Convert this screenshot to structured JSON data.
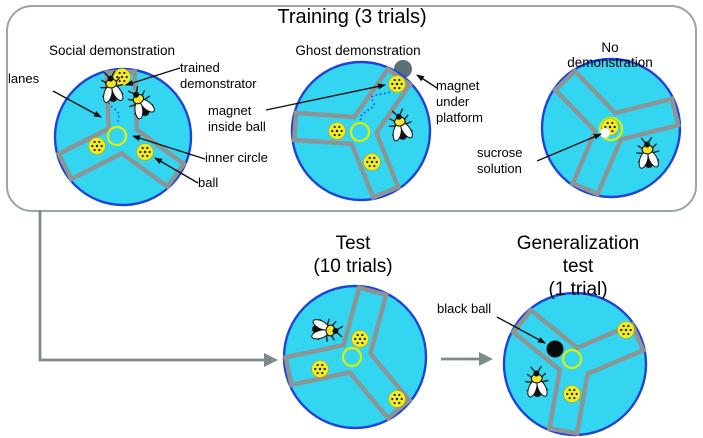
{
  "training": {
    "title": "Training (3 trials)",
    "panels": {
      "social": {
        "label": "Social demonstration"
      },
      "ghost": {
        "label": "Ghost demonstration"
      },
      "none": {
        "label": "No demonstration"
      }
    },
    "annotations": {
      "lanes": "lanes",
      "trained_demonstrator": "trained\ndemonstrator",
      "magnet_inside_ball": "magnet\ninside ball",
      "magnet_under_platform": "magnet\nunder\nplatform",
      "inner_circle": "inner circle",
      "ball": "ball",
      "sucrose_solution": "sucrose\nsolution"
    }
  },
  "test": {
    "title": "Test\n(10 trials)"
  },
  "generalization": {
    "title": "Generalization test\n(1 trial)",
    "annotations": {
      "black_ball": "black ball"
    }
  },
  "colors": {
    "arena_fill": "#33d5f1",
    "arena_stroke": "#2042d8",
    "lane_stroke": "#8b9596",
    "ball_fill": "#f1eb26",
    "ball_dots": "#1a1a1a",
    "inner_ring": "#e0ee00",
    "magnet_fill": "#5a6f78",
    "black_ball": "#0a0a0a",
    "trajectory": "#2050dd",
    "flow_arrow": "#7c8c8e",
    "label_arrow": "#111111",
    "bee_yellow": "#f5e52a",
    "bee_black": "#111111",
    "bee_wing": "#ffffff",
    "sucrose": "#ffffff"
  }
}
